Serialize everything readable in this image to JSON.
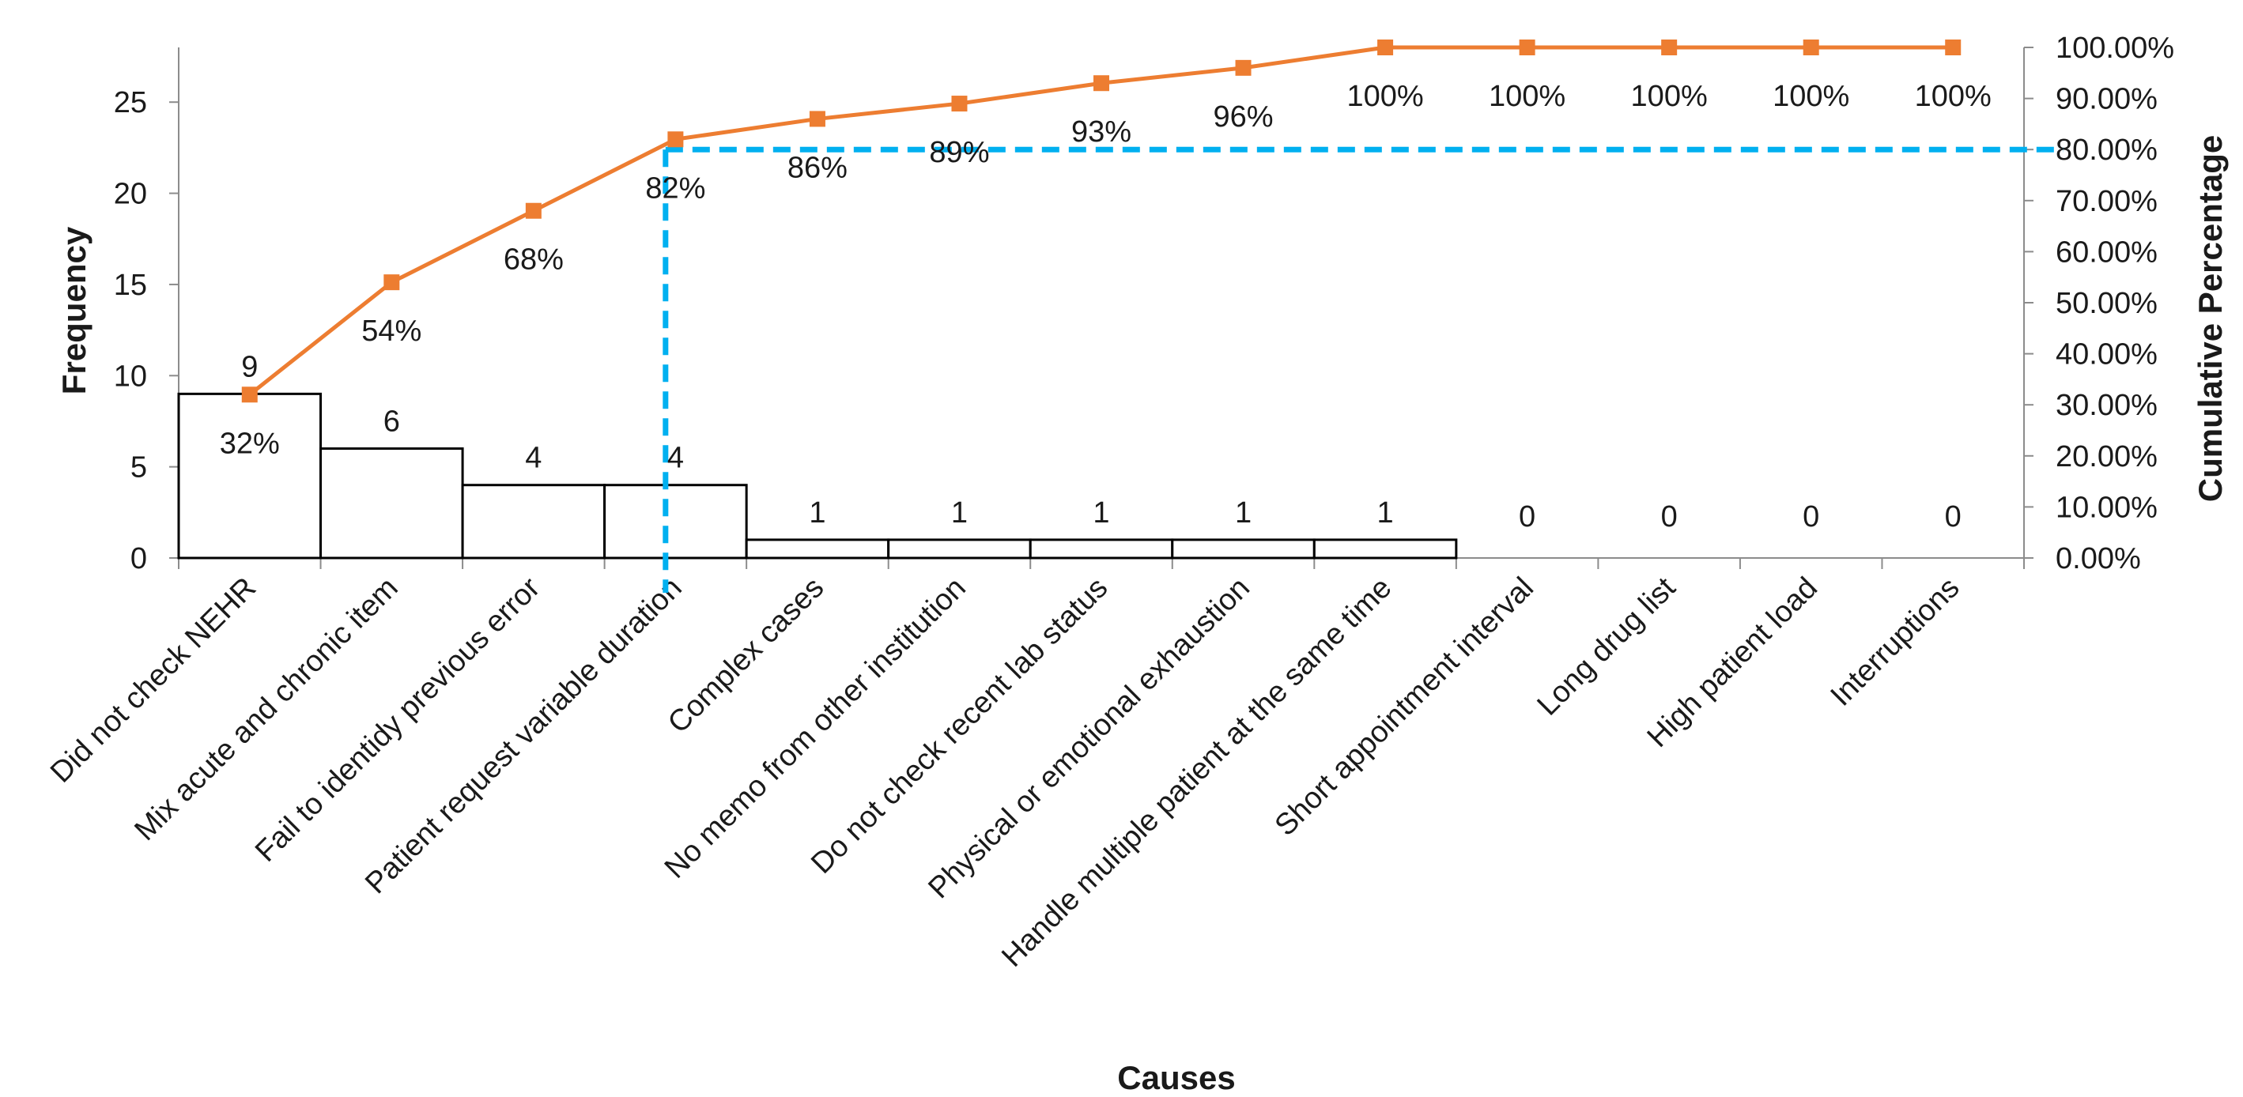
{
  "chart_data": {
    "type": "bar",
    "xlabel": "Causes",
    "ylabel": "Frequency",
    "y2label": "Cumulative Percentage",
    "categories": [
      "Did not check NEHR",
      "Mix acute and chronic item",
      "Fail to identidy previous error",
      "Patient request variable duration",
      "Complex cases",
      "No memo from other institution",
      "Do not check recent lab status",
      "Physical or emotional exhaustion",
      "Handle multiple patient at the same time",
      "Short appointment interval",
      "Long drug list",
      "High patient load",
      "Interruptions"
    ],
    "series": [
      {
        "type": "bar",
        "values": [
          9,
          6,
          4,
          4,
          1,
          1,
          1,
          1,
          1,
          0,
          0,
          0,
          0
        ],
        "value_labels": [
          "9",
          "6",
          "4",
          "4",
          "1",
          "1",
          "1",
          "1",
          "1",
          "0",
          "0",
          "0",
          "0"
        ],
        "color": "#000000"
      },
      {
        "type": "line",
        "axis": "secondary",
        "values": [
          32,
          54,
          68,
          82,
          86,
          89,
          93,
          96,
          100,
          100,
          100,
          100,
          100
        ],
        "value_labels": [
          "32%",
          "54%",
          "68%",
          "82%",
          "86%",
          "89%",
          "93%",
          "96%",
          "100%",
          "100%",
          "100%",
          "100%",
          "100%"
        ],
        "color": "#ED7D31",
        "marker": "square"
      }
    ],
    "reference_lines": [
      {
        "type": "horizontal",
        "axis": "secondary",
        "value": 80,
        "color": "#00B0F0",
        "style": "dashed"
      },
      {
        "type": "vertical",
        "at_category": "Patient request variable duration",
        "color": "#00B0F0",
        "style": "dashed"
      }
    ],
    "ylim": [
      0,
      28
    ],
    "yticks": [
      0,
      5,
      10,
      15,
      20,
      25
    ],
    "y2lim": [
      0,
      100
    ],
    "y2ticks": [
      "0.00%",
      "10.00%",
      "20.00%",
      "30.00%",
      "40.00%",
      "50.00%",
      "60.00%",
      "70.00%",
      "80.00%",
      "90.00%",
      "100.00%"
    ],
    "grid": false,
    "legend": "none"
  }
}
